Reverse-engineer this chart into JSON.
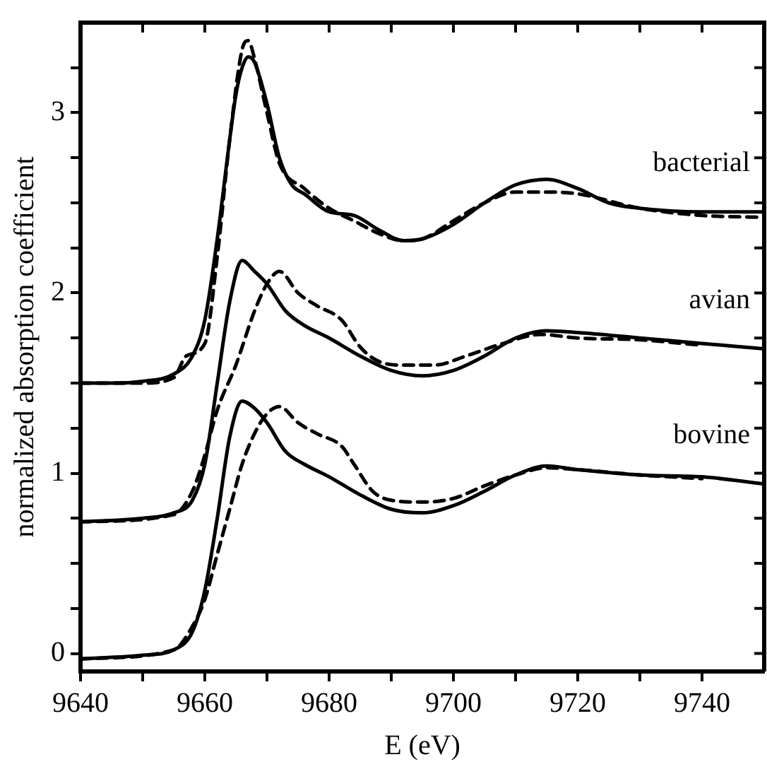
{
  "chart_data": {
    "type": "line",
    "xlabel": "E (eV)",
    "ylabel": "normalized absorption coefficient",
    "xlim": [
      9640,
      9750
    ],
    "ylim": [
      -0.1,
      3.5
    ],
    "xticks": [
      9640,
      {
        "value": 9650,
        "label": null
      },
      9660,
      {
        "value": 9670,
        "label": null
      },
      9680,
      {
        "value": 9690,
        "label": null
      },
      9700,
      {
        "value": 9710,
        "label": null
      },
      9720,
      {
        "value": 9730,
        "label": null
      },
      9740
    ],
    "yticks": [
      0,
      {
        "value": 0.25,
        "label": null
      },
      {
        "value": 0.5,
        "label": null
      },
      {
        "value": 0.75,
        "label": null
      },
      1,
      {
        "value": 1.25,
        "label": null
      },
      {
        "value": 1.5,
        "label": null
      },
      {
        "value": 1.75,
        "label": null
      },
      2,
      {
        "value": 2.25,
        "label": null
      },
      {
        "value": 2.5,
        "label": null
      },
      {
        "value": 2.75,
        "label": null
      },
      3,
      {
        "value": 3.25,
        "label": null
      }
    ],
    "grid": false,
    "legend": "right",
    "marker": "none",
    "series": [
      {
        "name": "bacterial",
        "color": "#000000",
        "line_style": "solid",
        "x": [
          9640,
          9645,
          9650,
          9655,
          9658,
          9660,
          9662,
          9664,
          9665,
          9666,
          9667,
          9668,
          9670,
          9672,
          9674,
          9676,
          9680,
          9684,
          9688,
          9692,
          9695,
          9700,
          9705,
          9710,
          9715,
          9720,
          9725,
          9730,
          9740,
          9750
        ],
        "values": [
          1.5,
          1.5,
          1.51,
          1.55,
          1.65,
          1.85,
          2.3,
          2.85,
          3.1,
          3.25,
          3.31,
          3.28,
          3.05,
          2.75,
          2.6,
          2.55,
          2.45,
          2.43,
          2.35,
          2.29,
          2.3,
          2.38,
          2.5,
          2.6,
          2.63,
          2.58,
          2.5,
          2.47,
          2.45,
          2.45
        ]
      },
      {
        "color": "#000000",
        "line_style": "dashed",
        "x": [
          9640,
          9650,
          9655,
          9657,
          9660,
          9662,
          9664,
          9666,
          9667,
          9668,
          9670,
          9672,
          9676,
          9680,
          9684,
          9688,
          9692,
          9695,
          9700,
          9705,
          9710,
          9715,
          9720,
          9730,
          9740,
          9750
        ],
        "values": [
          1.5,
          1.5,
          1.53,
          1.65,
          1.72,
          2.2,
          2.85,
          3.35,
          3.4,
          3.3,
          3.0,
          2.72,
          2.58,
          2.47,
          2.4,
          2.33,
          2.29,
          2.3,
          2.4,
          2.5,
          2.56,
          2.56,
          2.55,
          2.47,
          2.43,
          2.42
        ]
      },
      {
        "name": "avian",
        "color": "#000000",
        "line_style": "solid",
        "x": [
          9640,
          9650,
          9655,
          9658,
          9660,
          9662,
          9664,
          9666,
          9668,
          9670,
          9673,
          9676,
          9680,
          9685,
          9690,
          9695,
          9700,
          9705,
          9710,
          9715,
          9720,
          9730,
          9740,
          9750
        ],
        "values": [
          0.73,
          0.75,
          0.78,
          0.85,
          1.05,
          1.5,
          1.95,
          2.18,
          2.12,
          2.05,
          1.9,
          1.82,
          1.75,
          1.65,
          1.57,
          1.54,
          1.57,
          1.65,
          1.75,
          1.79,
          1.78,
          1.75,
          1.72,
          1.69
        ]
      },
      {
        "color": "#000000",
        "line_style": "dashed",
        "x": [
          9640,
          9655,
          9658,
          9660,
          9662,
          9665,
          9668,
          9670,
          9672,
          9675,
          9678,
          9682,
          9685,
          9688,
          9692,
          9697,
          9702,
          9708,
          9714,
          9720,
          9730,
          9740
        ],
        "values": [
          0.73,
          0.77,
          0.9,
          1.1,
          1.35,
          1.6,
          1.9,
          2.05,
          2.12,
          2.0,
          1.93,
          1.85,
          1.7,
          1.62,
          1.6,
          1.6,
          1.65,
          1.72,
          1.77,
          1.75,
          1.74,
          1.71
        ]
      },
      {
        "name": "bovine",
        "color": "#000000",
        "line_style": "solid",
        "x": [
          9640,
          9650,
          9655,
          9658,
          9660,
          9662,
          9664,
          9666,
          9668,
          9670,
          9673,
          9676,
          9680,
          9685,
          9690,
          9695,
          9700,
          9705,
          9710,
          9715,
          9720,
          9730,
          9740,
          9750
        ],
        "values": [
          -0.03,
          -0.01,
          0.02,
          0.12,
          0.35,
          0.75,
          1.2,
          1.4,
          1.36,
          1.28,
          1.12,
          1.05,
          0.98,
          0.88,
          0.8,
          0.78,
          0.82,
          0.9,
          0.99,
          1.04,
          1.02,
          0.99,
          0.98,
          0.94
        ]
      },
      {
        "color": "#000000",
        "line_style": "dashed",
        "x": [
          9640,
          9655,
          9658,
          9660,
          9662,
          9664,
          9666,
          9668,
          9670,
          9672,
          9675,
          9678,
          9682,
          9684,
          9687,
          9690,
          9695,
          9700,
          9705,
          9710,
          9715,
          9720,
          9730,
          9740
        ],
        "values": [
          -0.03,
          0.02,
          0.15,
          0.3,
          0.55,
          0.8,
          1.05,
          1.22,
          1.33,
          1.37,
          1.28,
          1.22,
          1.15,
          1.05,
          0.9,
          0.85,
          0.84,
          0.86,
          0.93,
          0.99,
          1.03,
          1.02,
          0.99,
          0.97
        ]
      }
    ]
  }
}
